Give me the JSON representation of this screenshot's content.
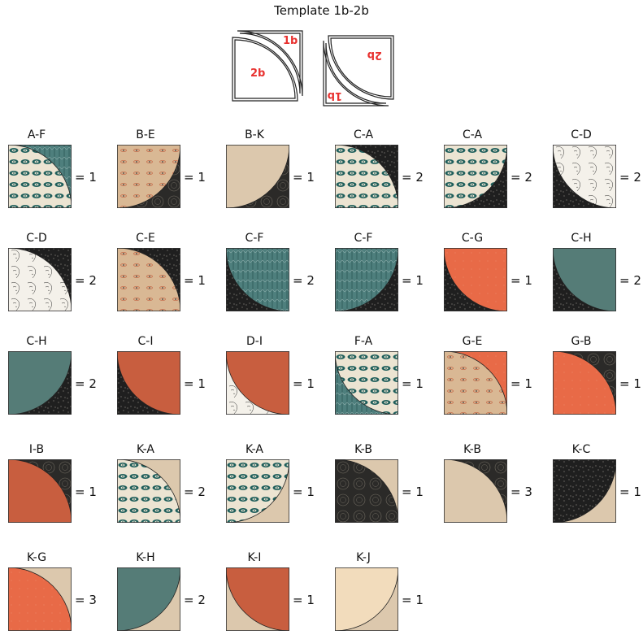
{
  "header": {
    "title": "Template 1b-2b"
  },
  "template": {
    "label_a": "1b",
    "label_b": "2b",
    "label_color": "#e8312f"
  },
  "fabrics": {
    "A": {
      "kind": "stripe",
      "bg": "#4e7f7d",
      "fg": "#3a6866"
    },
    "B": {
      "kind": "eyes",
      "bg": "#d9b894",
      "fg": "#c66e4d"
    },
    "C": {
      "kind": "speckle",
      "bg": "#1f1f1f",
      "fg": "#e6e0d3"
    },
    "D": {
      "kind": "faces",
      "bg": "#f4f1ea",
      "fg": "#2b2b2b"
    },
    "E": {
      "kind": "circles",
      "bg": "#2b2a28",
      "fg": "#6f6a60"
    },
    "F": {
      "kind": "geo",
      "bg": "#ece4d2",
      "fg": "#1e5e5b"
    },
    "G": {
      "kind": "solid",
      "bg": "#e86a47",
      "fg": "#f3b29a"
    },
    "H": {
      "kind": "solid",
      "bg": "#557c77",
      "fg": "#557c77"
    },
    "I": {
      "kind": "solid",
      "bg": "#c85e3f",
      "fg": "#c85e3f"
    },
    "J": {
      "kind": "solid",
      "bg": "#f2dcbc",
      "fg": "#f2dcbc"
    },
    "K": {
      "kind": "solid",
      "bg": "#dcc8ad",
      "fg": "#dcc8ad"
    }
  },
  "blocks": [
    {
      "label": "A-F",
      "count": "= 1",
      "arc": "F",
      "bg": "A",
      "corner": "bl"
    },
    {
      "label": "B-E",
      "count": "= 1",
      "arc": "B",
      "bg": "E",
      "corner": "tl"
    },
    {
      "label": "B-K",
      "count": "= 1",
      "arc": "K",
      "bg": "E",
      "corner": "tl"
    },
    {
      "label": "C-A",
      "count": "= 2",
      "arc": "F",
      "bg": "C",
      "corner": "bl"
    },
    {
      "label": "C-A",
      "count": "= 2",
      "arc": "F",
      "bg": "C",
      "corner": "tl"
    },
    {
      "label": "C-D",
      "count": "= 2",
      "arc": "D",
      "bg": "C",
      "corner": "tr"
    },
    {
      "label": "C-D",
      "count": "= 2",
      "arc": "D",
      "bg": "C",
      "corner": "bl"
    },
    {
      "label": "C-E",
      "count": "= 1",
      "arc": "B",
      "bg": "C",
      "corner": "bl"
    },
    {
      "label": "C-F",
      "count": "= 2",
      "arc": "A",
      "bg": "C",
      "corner": "tr"
    },
    {
      "label": "C-F",
      "count": "= 1",
      "arc": "A",
      "bg": "C",
      "corner": "tl"
    },
    {
      "label": "C-G",
      "count": "= 1",
      "arc": "G",
      "bg": "C",
      "corner": "tr"
    },
    {
      "label": "C-H",
      "count": "= 2",
      "arc": "H",
      "bg": "C",
      "corner": "tr"
    },
    {
      "label": "C-H",
      "count": "= 2",
      "arc": "H",
      "bg": "C",
      "corner": "tl"
    },
    {
      "label": "C-I",
      "count": "= 1",
      "arc": "I",
      "bg": "C",
      "corner": "tr"
    },
    {
      "label": "D-I",
      "count": "= 1",
      "arc": "I",
      "bg": "D",
      "corner": "tr"
    },
    {
      "label": "F-A",
      "count": "= 1",
      "arc": "F",
      "bg": "A",
      "corner": "tr"
    },
    {
      "label": "G-E",
      "count": "= 1",
      "arc": "B",
      "bg": "G",
      "corner": "bl"
    },
    {
      "label": "G-B",
      "count": "= 1",
      "arc": "G",
      "bg": "E",
      "corner": "bl"
    },
    {
      "label": "I-B",
      "count": "= 1",
      "arc": "I",
      "bg": "E",
      "corner": "bl"
    },
    {
      "label": "K-A",
      "count": "= 2",
      "arc": "F",
      "bg": "K",
      "corner": "bl"
    },
    {
      "label": "K-A",
      "count": "= 1",
      "arc": "F",
      "bg": "K",
      "corner": "tl"
    },
    {
      "label": "K-B",
      "count": "= 1",
      "arc": "E",
      "bg": "K",
      "corner": "bl"
    },
    {
      "label": "K-B",
      "count": "= 3",
      "arc": "K",
      "bg": "E",
      "corner": "bl"
    },
    {
      "label": "K-C",
      "count": "= 1",
      "arc": "C",
      "bg": "K",
      "corner": "tl"
    },
    {
      "label": "K-G",
      "count": "= 3",
      "arc": "G",
      "bg": "K",
      "corner": "bl"
    },
    {
      "label": "K-H",
      "count": "= 2",
      "arc": "H",
      "bg": "K",
      "corner": "tl"
    },
    {
      "label": "K-I",
      "count": "= 1",
      "arc": "I",
      "bg": "K",
      "corner": "tr"
    },
    {
      "label": "K-J",
      "count": "= 1",
      "arc": "J",
      "bg": "K",
      "corner": "tl"
    }
  ]
}
